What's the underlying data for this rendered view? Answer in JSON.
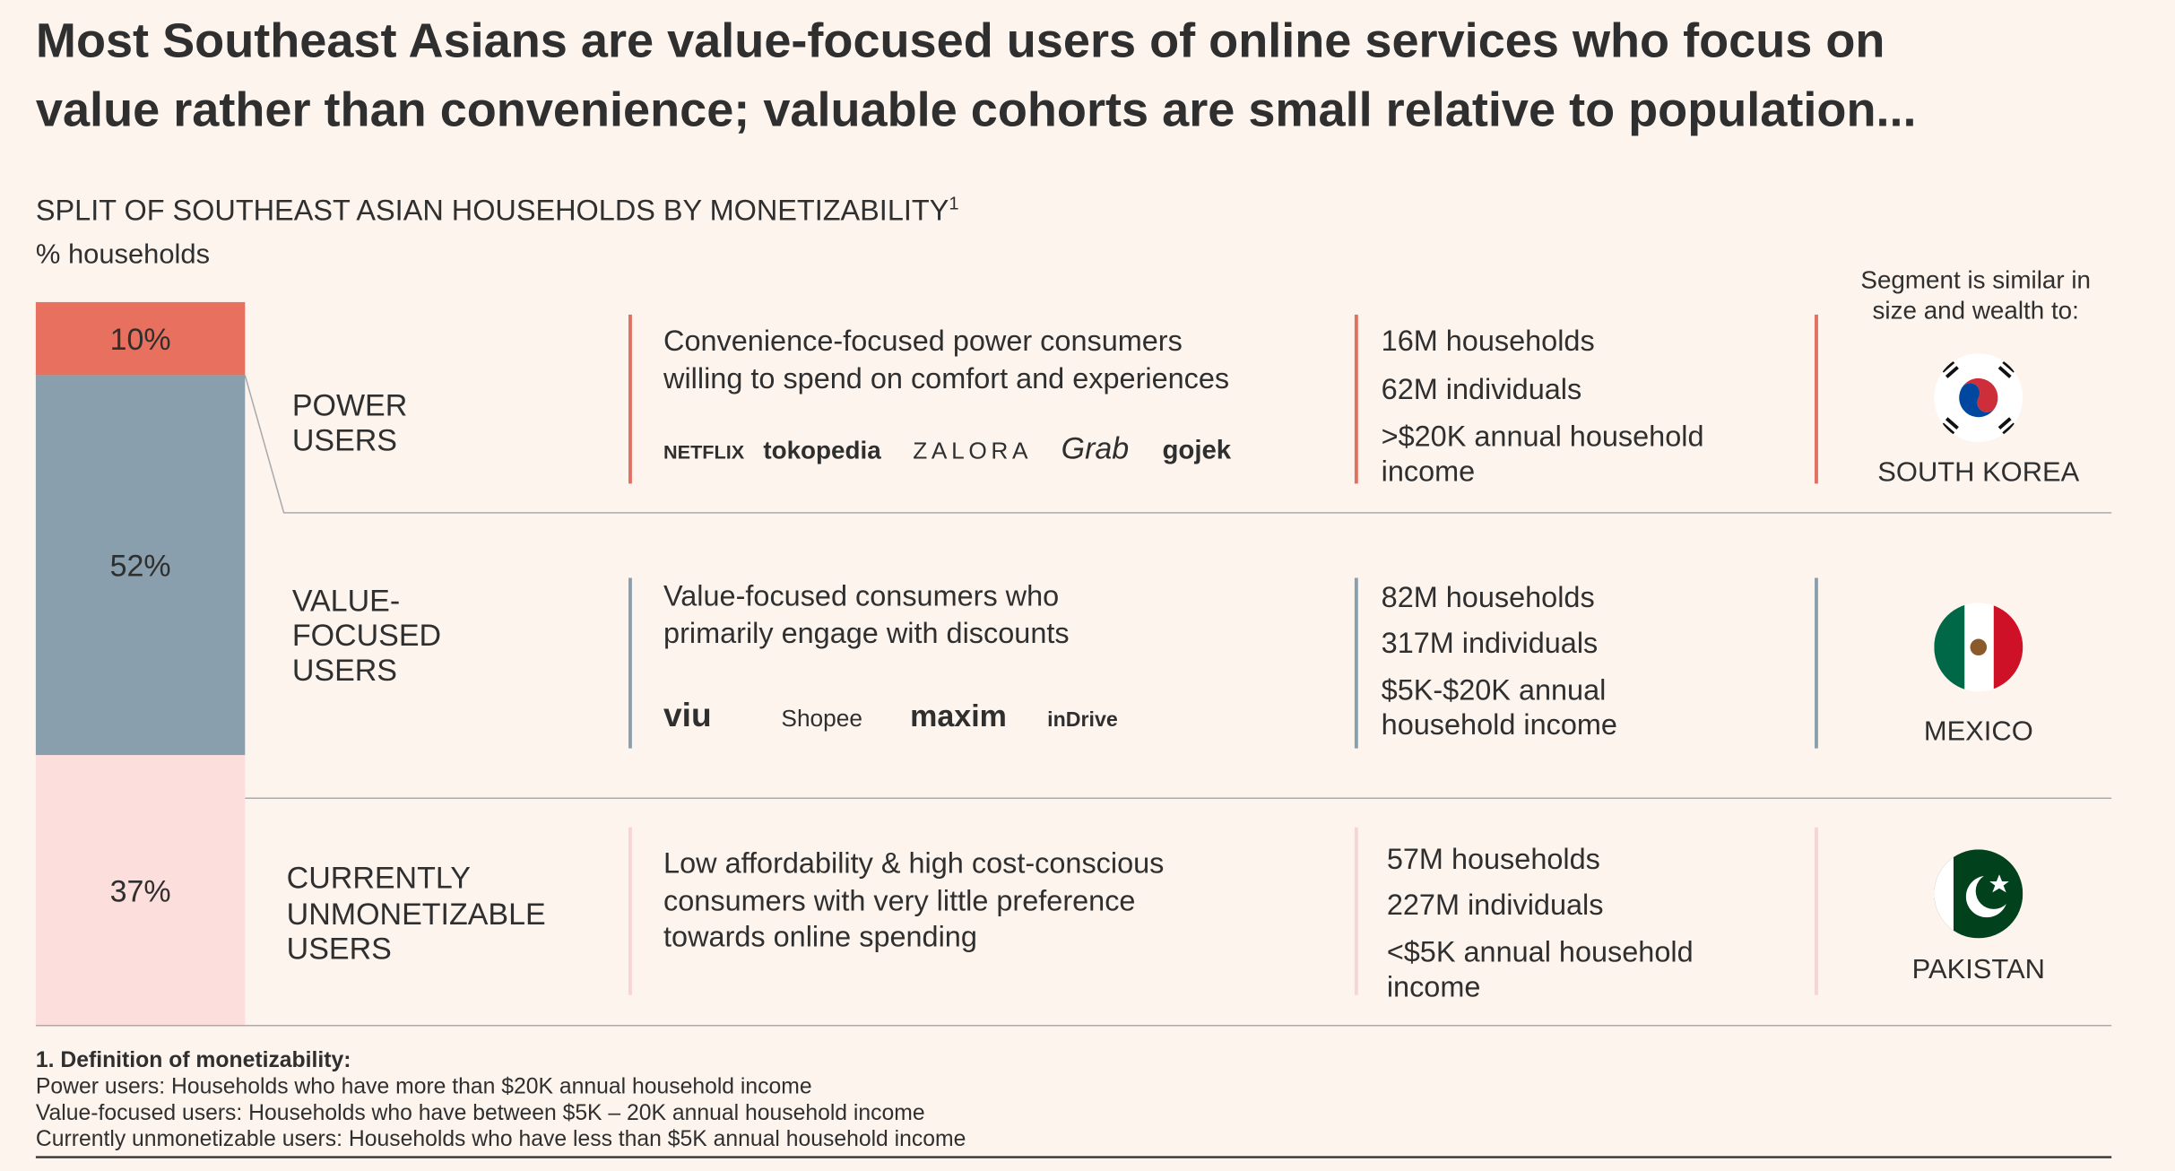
{
  "header": {
    "title": [
      "Most Southeast Asians are value-focused users of online services who focus on",
      "value rather than convenience; valuable cohorts are small relative to population..."
    ],
    "subtitle": "SPLIT OF SOUTHEAST ASIAN HOUSEHOLDS BY MONETIZABILITY",
    "subtitle_note": "1",
    "unit": "% households",
    "comparison_heading": [
      "Segment is similar in",
      "size and wealth to:"
    ]
  },
  "segments": [
    {
      "share": 10,
      "share_label": "10%",
      "color": "#E8705E",
      "divider_color": "#E0705F",
      "name": [
        "POWER",
        "USERS"
      ],
      "description": [
        "Convenience-focused power consumers",
        "willing to spend on comfort and experiences"
      ],
      "logos": [
        {
          "text": "NETFLIX",
          "color": "#E50914"
        },
        {
          "text": "tokopedia",
          "color": "#42B549"
        },
        {
          "text": "ZALORA",
          "color": "#333333"
        },
        {
          "text": "Grab",
          "color": "#3BAA4A"
        },
        {
          "text": "gojek",
          "color": "#111111"
        }
      ],
      "stats": [
        "16M households",
        "62M individuals",
        ">$20K annual household",
        "income"
      ],
      "country": "SOUTH KOREA"
    },
    {
      "share": 52,
      "share_label": "52%",
      "color": "#8A9FAD",
      "divider_color": "#8A9FAD",
      "name": [
        "VALUE-",
        "FOCUSED",
        "USERS"
      ],
      "description": [
        "Value-focused consumers who",
        "primarily engage with discounts"
      ],
      "logos": [
        {
          "text": "viu",
          "color": "#F5B21A"
        },
        {
          "text": "Shopee",
          "color": "#EE4D2D"
        },
        {
          "text": "maxim",
          "color": "#111111"
        },
        {
          "text": "inDrive",
          "color": "#111111"
        }
      ],
      "stats": [
        "82M households",
        "317M individuals",
        "$5K-$20K annual",
        "household income"
      ],
      "country": "MEXICO"
    },
    {
      "share": 37,
      "share_label": "37%",
      "color": "#FCDEDC",
      "divider_color": "#F6D5D3",
      "name": [
        "CURRENTLY",
        "UNMONETIZABLE",
        "USERS"
      ],
      "description": [
        "Low affordability & high cost-conscious",
        "consumers  with very little preference",
        "towards online spending"
      ],
      "logos": [],
      "stats": [
        "57M households",
        "227M individuals",
        "<$5K annual household",
        "income"
      ],
      "country": "PAKISTAN"
    }
  ],
  "footnote": {
    "heading": "1. Definition of monetizability:",
    "lines": [
      "Power users: Households who have more than $20K annual household income",
      "Value-focused users: Households who have between $5K – 20K annual household income",
      "Currently unmonetizable users: Households who have less than $5K annual household income"
    ]
  }
}
